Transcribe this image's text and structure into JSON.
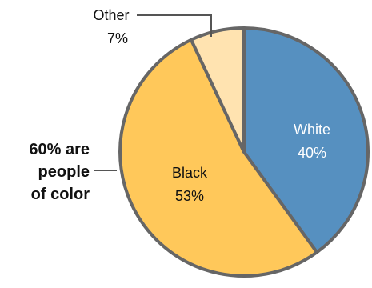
{
  "chart_data": {
    "type": "pie",
    "slices": [
      {
        "label": "White",
        "value_label": "40%",
        "value": 40,
        "color": "#5690C0",
        "text_color": "#ffffff"
      },
      {
        "label": "Black",
        "value_label": "53%",
        "value": 53,
        "color": "#FFC85A",
        "text_color": "#111111"
      },
      {
        "label": "Other",
        "value_label": "7%",
        "value": 7,
        "color": "#FFE3B0",
        "text_color": "#111111"
      }
    ],
    "callout": {
      "lines": [
        "60% are",
        "people",
        "of color"
      ]
    },
    "outline_color": "#666666",
    "leader_color": "#555555"
  }
}
